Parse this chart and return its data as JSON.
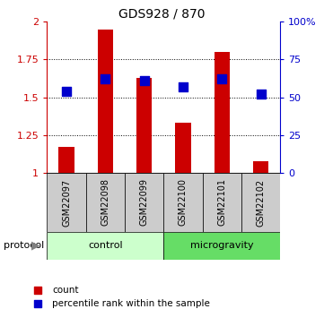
{
  "title": "GDS928 / 870",
  "samples": [
    "GSM22097",
    "GSM22098",
    "GSM22099",
    "GSM22100",
    "GSM22101",
    "GSM22102"
  ],
  "bar_heights": [
    1.17,
    1.95,
    1.63,
    1.33,
    1.8,
    1.08
  ],
  "percentile_ranks": [
    54,
    62,
    61,
    57,
    62,
    52
  ],
  "bar_color": "#cc0000",
  "square_color": "#0000cc",
  "ylim_left": [
    1.0,
    2.0
  ],
  "ylim_right": [
    0,
    100
  ],
  "yticks_left": [
    1.0,
    1.25,
    1.5,
    1.75,
    2.0
  ],
  "yticks_right": [
    0,
    25,
    50,
    75,
    100
  ],
  "ytick_labels_left": [
    "1",
    "1.25",
    "1.5",
    "1.75",
    "2"
  ],
  "ytick_labels_right": [
    "0",
    "25",
    "50",
    "75",
    "100%"
  ],
  "grid_yticks": [
    1.25,
    1.5,
    1.75
  ],
  "groups": [
    {
      "label": "control",
      "start": 0,
      "end": 2,
      "color": "#ccffcc"
    },
    {
      "label": "microgravity",
      "start": 3,
      "end": 5,
      "color": "#66dd66"
    }
  ],
  "protocol_label": "protocol",
  "legend_items": [
    {
      "label": "count",
      "color": "#cc0000"
    },
    {
      "label": "percentile rank within the sample",
      "color": "#0000cc"
    }
  ],
  "bg_color": "#ffffff",
  "bar_width": 0.4,
  "square_size": 55
}
